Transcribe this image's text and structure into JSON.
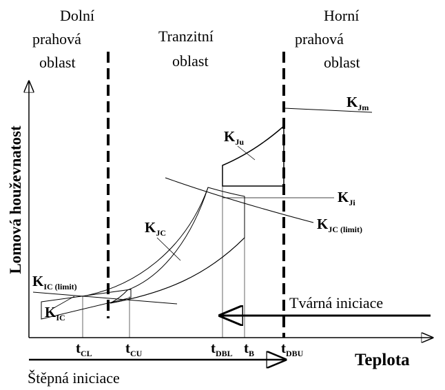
{
  "regions": [
    {
      "lines": [
        "Dolní",
        "prahová",
        "oblast"
      ]
    },
    {
      "lines": [
        "Tranzitní",
        "oblast"
      ]
    },
    {
      "lines": [
        "Horní",
        "prahová",
        "oblast"
      ]
    }
  ],
  "curves": [
    {
      "symbol": "K",
      "subscript": "Jm"
    },
    {
      "symbol": "K",
      "subscript": "Ju"
    },
    {
      "symbol": "K",
      "subscript": "Ji"
    },
    {
      "symbol": "K",
      "subscript": "JC"
    },
    {
      "symbol": "K",
      "subscript": "JC (limit)"
    },
    {
      "symbol": "K",
      "subscript": "IC (limit)"
    },
    {
      "symbol": "K",
      "subscript": "IC"
    }
  ],
  "y_axis_label": "Lomová houževnatost",
  "x_axis_label": "Teplota",
  "ticks": [
    {
      "symbol": "t",
      "subscript": "CL"
    },
    {
      "symbol": "t",
      "subscript": "CU"
    },
    {
      "symbol": "t",
      "subscript": "DBL"
    },
    {
      "symbol": "t",
      "subscript": "B"
    },
    {
      "symbol": "t",
      "subscript": "DBU"
    }
  ],
  "arrows": [
    {
      "label": "Tvárná iniciace"
    },
    {
      "label": "Štěpná iniciace"
    }
  ]
}
